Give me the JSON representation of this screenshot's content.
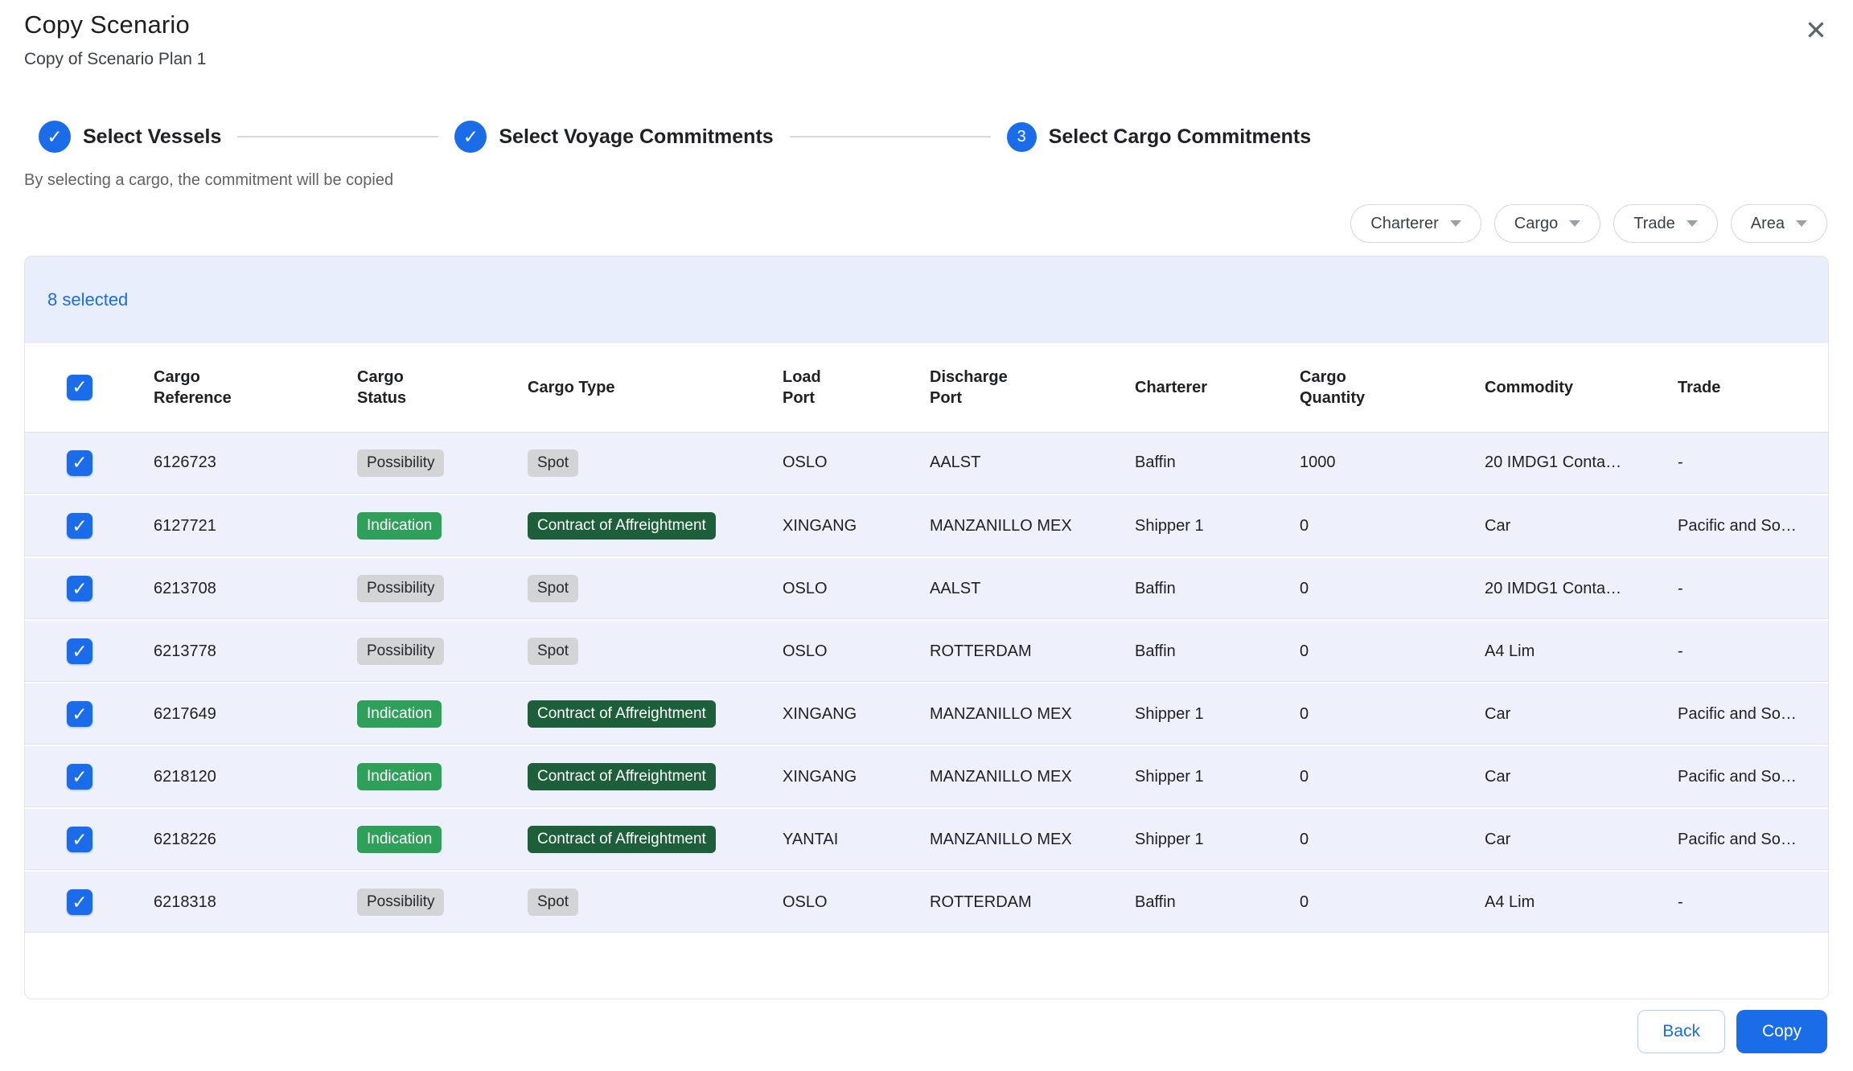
{
  "colors": {
    "accent": "#1a6ce8",
    "bar_bg": "#e8eefb",
    "row_bg": "#eef1fb",
    "badge_gray_bg": "#d3d4d6",
    "badge_green_bg": "#2fa05a",
    "badge_darkgreen_bg": "#1d5f3a"
  },
  "dialog": {
    "title": "Copy Scenario",
    "subtitle": "Copy of Scenario Plan 1",
    "close_glyph": "✕",
    "helper_text": "By selecting a cargo, the commitment will be copied"
  },
  "stepper": {
    "steps": [
      {
        "label": "Select Vessels",
        "state": "complete",
        "check_glyph": "✓"
      },
      {
        "label": "Select Voyage Commitments",
        "state": "complete",
        "check_glyph": "✓"
      },
      {
        "label": "Select Cargo Commitments",
        "state": "active",
        "number": "3"
      }
    ]
  },
  "filters": [
    {
      "label": "Charterer"
    },
    {
      "label": "Cargo"
    },
    {
      "label": "Trade"
    },
    {
      "label": "Area"
    }
  ],
  "table": {
    "selected_text": "8 selected",
    "check_glyph": "✓",
    "columns": [
      "Cargo\nReference",
      "Cargo\nStatus",
      "Cargo Type",
      "Load\nPort",
      "Discharge\nPort",
      "Charterer",
      "Cargo\nQuantity",
      "Commodity",
      "Trade"
    ],
    "rows": [
      {
        "selected": true,
        "reference": "6126723",
        "status": "Possibility",
        "status_variant": "gray",
        "type": "Spot",
        "type_variant": "gray",
        "load_port": "OSLO",
        "discharge_port": "AALST",
        "charterer": "Baffin",
        "quantity": "1000",
        "commodity": "20 IMDG1 Conta…",
        "trade": "-"
      },
      {
        "selected": true,
        "reference": "6127721",
        "status": "Indication",
        "status_variant": "green",
        "type": "Contract of Affreightment",
        "type_variant": "dark-green",
        "load_port": "XINGANG",
        "discharge_port": "MANZANILLO MEX",
        "charterer": "Shipper 1",
        "quantity": "0",
        "commodity": "Car",
        "trade": "Pacific and So…"
      },
      {
        "selected": true,
        "reference": "6213708",
        "status": "Possibility",
        "status_variant": "gray",
        "type": "Spot",
        "type_variant": "gray",
        "load_port": "OSLO",
        "discharge_port": "AALST",
        "charterer": "Baffin",
        "quantity": "0",
        "commodity": "20 IMDG1 Conta…",
        "trade": "-"
      },
      {
        "selected": true,
        "reference": "6213778",
        "status": "Possibility",
        "status_variant": "gray",
        "type": "Spot",
        "type_variant": "gray",
        "load_port": "OSLO",
        "discharge_port": "ROTTERDAM",
        "charterer": "Baffin",
        "quantity": "0",
        "commodity": "A4 Lim",
        "trade": "-"
      },
      {
        "selected": true,
        "reference": "6217649",
        "status": "Indication",
        "status_variant": "green",
        "type": "Contract of Affreightment",
        "type_variant": "dark-green",
        "load_port": "XINGANG",
        "discharge_port": "MANZANILLO MEX",
        "charterer": "Shipper 1",
        "quantity": "0",
        "commodity": "Car",
        "trade": "Pacific and So…"
      },
      {
        "selected": true,
        "reference": "6218120",
        "status": "Indication",
        "status_variant": "green",
        "type": "Contract of Affreightment",
        "type_variant": "dark-green",
        "load_port": "XINGANG",
        "discharge_port": "MANZANILLO MEX",
        "charterer": "Shipper 1",
        "quantity": "0",
        "commodity": "Car",
        "trade": "Pacific and So…"
      },
      {
        "selected": true,
        "reference": "6218226",
        "status": "Indication",
        "status_variant": "green",
        "type": "Contract of Affreightment",
        "type_variant": "dark-green",
        "load_port": "YANTAI",
        "discharge_port": "MANZANILLO MEX",
        "charterer": "Shipper 1",
        "quantity": "0",
        "commodity": "Car",
        "trade": "Pacific and So…"
      },
      {
        "selected": true,
        "reference": "6218318",
        "status": "Possibility",
        "status_variant": "gray",
        "type": "Spot",
        "type_variant": "gray",
        "load_port": "OSLO",
        "discharge_port": "ROTTERDAM",
        "charterer": "Baffin",
        "quantity": "0",
        "commodity": "A4 Lim",
        "trade": "-"
      }
    ]
  },
  "footer": {
    "back_label": "Back",
    "copy_label": "Copy"
  }
}
